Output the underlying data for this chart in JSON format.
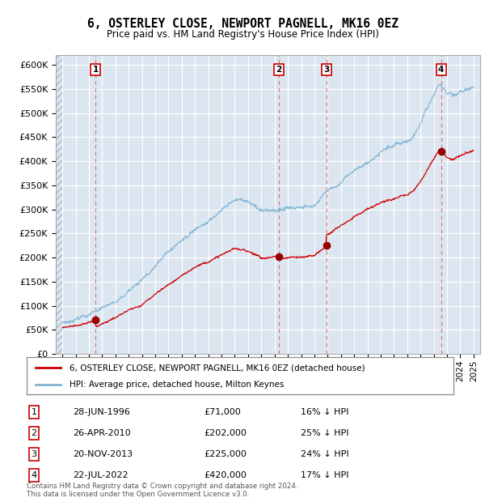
{
  "title": "6, OSTERLEY CLOSE, NEWPORT PAGNELL, MK16 0EZ",
  "subtitle": "Price paid vs. HM Land Registry's House Price Index (HPI)",
  "background_color": "#dce6f1",
  "grid_color": "#ffffff",
  "sale_dates": [
    1996.49,
    2010.32,
    2013.9,
    2022.55
  ],
  "sale_prices": [
    71000,
    202000,
    225000,
    420000
  ],
  "sale_labels": [
    "1",
    "2",
    "3",
    "4"
  ],
  "table_data": [
    [
      "1",
      "28-JUN-1996",
      "£71,000",
      "16% ↓ HPI"
    ],
    [
      "2",
      "26-APR-2010",
      "£202,000",
      "25% ↓ HPI"
    ],
    [
      "3",
      "20-NOV-2013",
      "£225,000",
      "24% ↓ HPI"
    ],
    [
      "4",
      "22-JUL-2022",
      "£420,000",
      "17% ↓ HPI"
    ]
  ],
  "red_line_color": "#cc0000",
  "blue_line_color": "#7fb3d3",
  "sale_marker_color": "#990000",
  "dashed_line_color": "#dd6666",
  "ylim": [
    0,
    620000
  ],
  "yticks": [
    0,
    50000,
    100000,
    150000,
    200000,
    250000,
    300000,
    350000,
    400000,
    450000,
    500000,
    550000,
    600000
  ],
  "xlim_start": 1993.5,
  "xlim_end": 2025.5,
  "copyright_text": "Contains HM Land Registry data © Crown copyright and database right 2024.\nThis data is licensed under the Open Government Licence v3.0.",
  "legend_red_label": "6, OSTERLEY CLOSE, NEWPORT PAGNELL, MK16 0EZ (detached house)",
  "legend_blue_label": "HPI: Average price, detached house, Milton Keynes"
}
